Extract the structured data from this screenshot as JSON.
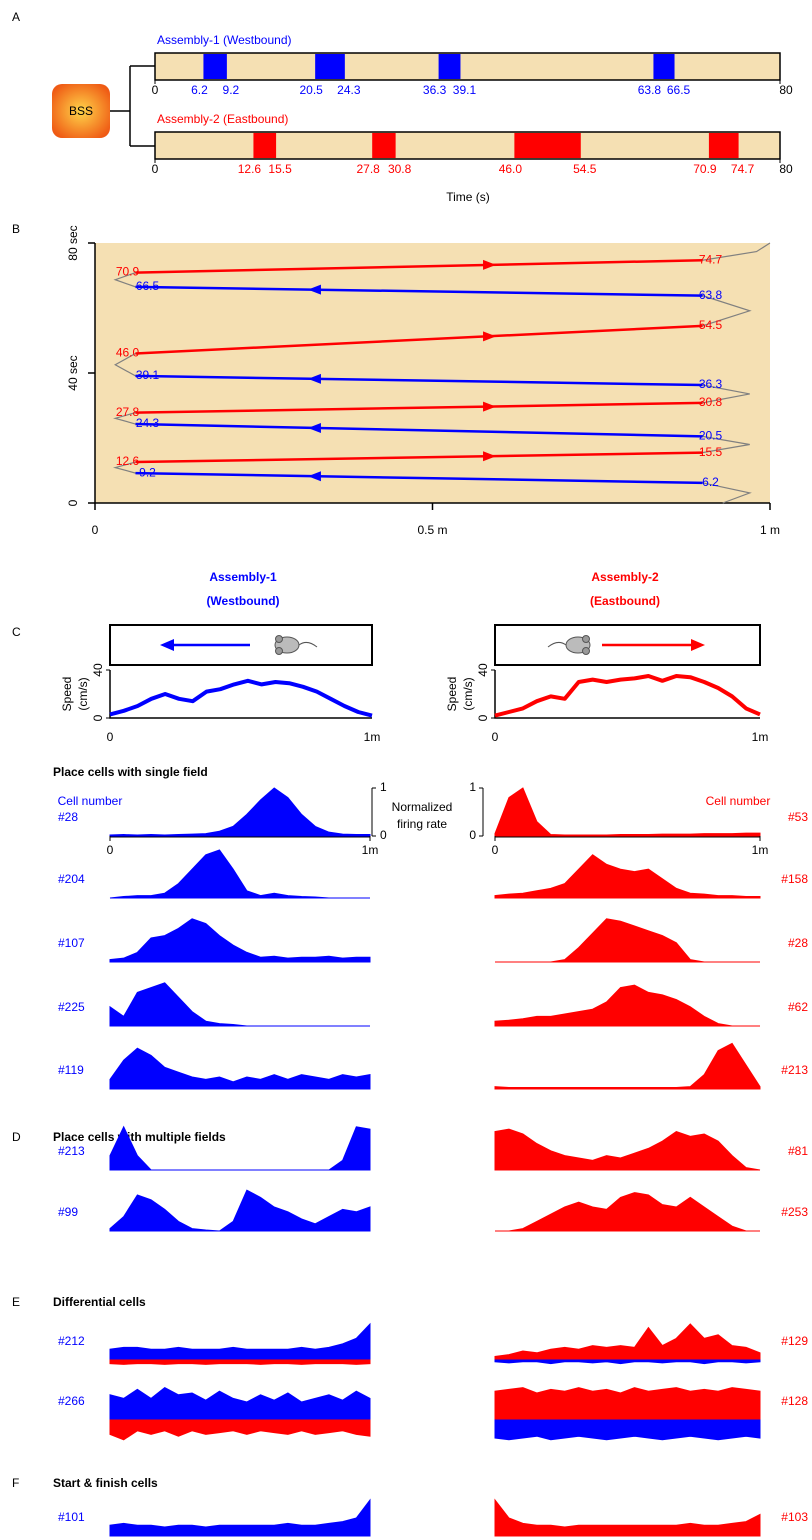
{
  "colors": [
    "#0000ff",
    "#ff0000"
  ],
  "track_color": "#f5e0b3",
  "path_color": "#808080",
  "panel_a": {
    "letter": "A",
    "source": "BSS",
    "xlim": [
      0,
      80
    ],
    "xticks": [
      0,
      80
    ],
    "xlabel": "Time (s)",
    "assemblies": [
      {
        "name": "Assembly-1 (Westbound)",
        "starts": [
          6.2,
          20.5,
          36.3,
          63.8
        ],
        "ends": [
          9.2,
          24.3,
          39.1,
          66.5
        ]
      },
      {
        "name": "Assembly-2 (Eastbound)",
        "starts": [
          12.6,
          27.8,
          {
            "value": 46,
            "label": "46.0"
          },
          70.9
        ],
        "ends": [
          15.5,
          30.8,
          54.5,
          74.7
        ]
      }
    ]
  },
  "panel_b": {
    "letter": "B",
    "ylim": [
      0,
      80
    ],
    "yticks": [
      0,
      {
        "value": 40,
        "label": "40 sec"
      },
      {
        "value": 80,
        "label": "80 sec"
      }
    ],
    "xlim": [
      0,
      1
    ],
    "xticks": [
      0,
      {
        "value": 0.5,
        "label": "0.5 m"
      },
      {
        "value": 1,
        "label": "1 m"
      }
    ],
    "run_x": [
      0.06,
      0.9
    ],
    "labels": [
      [
        "Assembly-1",
        "(Westbound)"
      ],
      [
        "Assembly-2",
        "(Eastbound)"
      ]
    ]
  },
  "panel_c": {
    "letter": "C",
    "speed": {
      "ylabel": [
        "Speed",
        "(cm/s)"
      ],
      "ylim": [
        0,
        40
      ],
      "yticks": [
        0,
        40
      ],
      "xticks": [
        0,
        {
          "value": 1,
          "label": "1m"
        }
      ],
      "series": [
        [
          3,
          6,
          10,
          16,
          20,
          16,
          14,
          22,
          24,
          28,
          31,
          28,
          30,
          29,
          26,
          22,
          16,
          10,
          5,
          2
        ],
        [
          2,
          5,
          8,
          14,
          18,
          16,
          30,
          32,
          30,
          32,
          33,
          35,
          31,
          35,
          34,
          30,
          25,
          18,
          8,
          3
        ]
      ]
    },
    "title": "Place cells with single field",
    "cell_number": "Cell number",
    "norm_label": [
      "Normalized",
      "firing rate"
    ],
    "rate_ticks": [
      0,
      1
    ],
    "pos_ticks": [
      0,
      {
        "value": 1,
        "label": "1m"
      }
    ],
    "cells": [
      [
        {
          "name": "#28",
          "values": [
            0.02,
            0.03,
            0.02,
            0.03,
            0.02,
            0.03,
            0.04,
            0.05,
            0.1,
            0.2,
            0.45,
            0.75,
            1.0,
            0.8,
            0.45,
            0.2,
            0.08,
            0.04,
            0.03,
            0.03
          ]
        },
        {
          "name": "#204",
          "values": [
            0,
            0.03,
            0.05,
            0.05,
            0.1,
            0.3,
            0.6,
            0.9,
            1.0,
            0.6,
            0.15,
            0.05,
            0.1,
            0.05,
            0.03,
            0.02,
            0,
            0,
            0,
            0
          ]
        },
        {
          "name": "#107",
          "values": [
            0.05,
            0.08,
            0.2,
            0.5,
            0.55,
            0.7,
            0.9,
            0.8,
            0.55,
            0.35,
            0.2,
            0.1,
            0.12,
            0.08,
            0.1,
            0.1,
            0.12,
            0.08,
            0.1,
            0.1
          ]
        },
        {
          "name": "#225",
          "values": [
            0.4,
            0.2,
            0.7,
            0.8,
            0.9,
            0.6,
            0.3,
            0.1,
            0.05,
            0.03,
            0,
            0,
            0,
            0,
            0,
            0,
            0,
            0,
            0,
            0
          ]
        },
        {
          "name": "#119",
          "values": [
            0.2,
            0.6,
            0.85,
            0.7,
            0.45,
            0.35,
            0.25,
            0.2,
            0.25,
            0.15,
            0.25,
            0.2,
            0.3,
            0.2,
            0.3,
            0.25,
            0.2,
            0.3,
            0.25,
            0.3
          ]
        }
      ],
      [
        {
          "name": "#53",
          "values": [
            0.05,
            0.8,
            1.0,
            0.3,
            0.03,
            0.02,
            0.02,
            0.02,
            0.02,
            0.03,
            0.03,
            0.03,
            0.04,
            0.04,
            0.04,
            0.05,
            0.05,
            0.05,
            0.06,
            0.06
          ]
        },
        {
          "name": "#158",
          "values": [
            0.05,
            0.08,
            0.1,
            0.15,
            0.2,
            0.3,
            0.6,
            0.9,
            0.7,
            0.6,
            0.55,
            0.6,
            0.4,
            0.2,
            0.1,
            0.08,
            0.05,
            0.05,
            0.03,
            0.03
          ]
        },
        {
          "name": "#28",
          "values": [
            0,
            0,
            0,
            0,
            0,
            0.05,
            0.3,
            0.6,
            0.9,
            0.85,
            0.75,
            0.65,
            0.55,
            0.4,
            0.05,
            0,
            0,
            0,
            0,
            0
          ]
        },
        {
          "name": "#62",
          "values": [
            0.1,
            0.12,
            0.15,
            0.2,
            0.2,
            0.25,
            0.3,
            0.35,
            0.5,
            0.8,
            0.85,
            0.7,
            0.65,
            0.55,
            0.4,
            0.2,
            0.05,
            0,
            0,
            0
          ]
        },
        {
          "name": "#213",
          "values": [
            0.05,
            0.03,
            0.03,
            0.03,
            0.03,
            0.03,
            0.03,
            0.03,
            0.03,
            0.03,
            0.03,
            0.03,
            0.03,
            0.03,
            0.05,
            0.3,
            0.8,
            0.95,
            0.5,
            0.05
          ]
        }
      ]
    ]
  },
  "panel_d": {
    "letter": "D",
    "title": "Place cells with multiple fields",
    "cells": [
      [
        {
          "name": "#213",
          "values": [
            0.3,
            0.9,
            0.3,
            0,
            0,
            0,
            0,
            0,
            0,
            0,
            0,
            0,
            0,
            0,
            0,
            0,
            0,
            0.2,
            0.9,
            0.85
          ]
        },
        {
          "name": "#99",
          "values": [
            0.05,
            0.3,
            0.75,
            0.65,
            0.45,
            0.2,
            0.05,
            0.02,
            0,
            0.2,
            0.85,
            0.7,
            0.5,
            0.4,
            0.25,
            0.15,
            0.3,
            0.45,
            0.4,
            0.5
          ]
        }
      ],
      [
        {
          "name": "#81",
          "values": [
            0.8,
            0.85,
            0.75,
            0.55,
            0.4,
            0.3,
            0.25,
            0.2,
            0.3,
            0.25,
            0.35,
            0.45,
            0.6,
            0.8,
            0.7,
            0.75,
            0.6,
            0.3,
            0.05,
            0
          ]
        },
        {
          "name": "#253",
          "values": [
            0,
            0,
            0.05,
            0.2,
            0.35,
            0.5,
            0.6,
            0.5,
            0.45,
            0.7,
            0.8,
            0.75,
            0.55,
            0.5,
            0.7,
            0.5,
            0.3,
            0.1,
            0,
            0
          ]
        }
      ]
    ]
  },
  "panel_e": {
    "letter": "E",
    "title": "Differential cells",
    "cells": [
      [
        {
          "name": "#212",
          "up": [
            0.3,
            0.35,
            0.35,
            0.3,
            0.3,
            0.35,
            0.3,
            0.3,
            0.3,
            0.35,
            0.3,
            0.3,
            0.3,
            0.3,
            0.35,
            0.3,
            0.35,
            0.45,
            0.6,
            1.0
          ],
          "down": [
            0.1,
            0.12,
            0.1,
            0.1,
            0.12,
            0.1,
            0.1,
            0.12,
            0.1,
            0.1,
            0.1,
            0.12,
            0.1,
            0.1,
            0.12,
            0.1,
            0.1,
            0.1,
            0.12,
            0.1
          ]
        },
        {
          "name": "#266",
          "up": [
            0.7,
            0.6,
            0.85,
            0.6,
            0.9,
            0.7,
            0.75,
            0.55,
            0.8,
            0.6,
            0.5,
            0.7,
            0.55,
            0.75,
            0.5,
            0.6,
            0.7,
            0.55,
            0.8,
            0.6
          ],
          "down": [
            0.4,
            0.55,
            0.3,
            0.4,
            0.3,
            0.45,
            0.3,
            0.4,
            0.35,
            0.3,
            0.4,
            0.3,
            0.35,
            0.4,
            0.3,
            0.4,
            0.35,
            0.3,
            0.4,
            0.45
          ]
        }
      ],
      [
        {
          "name": "#129",
          "up": [
            0.1,
            0.15,
            0.25,
            0.2,
            0.3,
            0.35,
            0.3,
            0.4,
            0.35,
            0.4,
            0.35,
            0.9,
            0.4,
            0.6,
            1.0,
            0.6,
            0.7,
            0.4,
            0.35,
            0.2
          ],
          "down": [
            0.05,
            0.08,
            0.05,
            0.05,
            0.1,
            0.05,
            0.05,
            0.08,
            0.05,
            0.1,
            0.05,
            0.05,
            0.08,
            0.05,
            0.05,
            0.1,
            0.05,
            0.05,
            0.08,
            0.05
          ]
        },
        {
          "name": "#128",
          "up": [
            0.8,
            0.85,
            0.9,
            0.75,
            0.85,
            0.8,
            0.9,
            0.8,
            0.85,
            0.75,
            0.9,
            0.8,
            0.85,
            0.9,
            0.8,
            0.85,
            0.8,
            0.9,
            0.85,
            0.8
          ],
          "down": [
            0.5,
            0.55,
            0.5,
            0.45,
            0.55,
            0.5,
            0.45,
            0.5,
            0.55,
            0.5,
            0.45,
            0.5,
            0.55,
            0.5,
            0.45,
            0.5,
            0.55,
            0.5,
            0.45,
            0.5
          ]
        }
      ]
    ]
  },
  "panel_f": {
    "letter": "F",
    "title": "Start & finish cells",
    "cells": [
      [
        {
          "name": "#101",
          "values": [
            0.3,
            0.35,
            0.3,
            0.3,
            0.25,
            0.3,
            0.3,
            0.25,
            0.3,
            0.3,
            0.3,
            0.3,
            0.3,
            0.35,
            0.3,
            0.3,
            0.35,
            0.4,
            0.5,
            1.0
          ]
        }
      ],
      [
        {
          "name": "#103",
          "values": [
            1.0,
            0.5,
            0.35,
            0.3,
            0.3,
            0.25,
            0.3,
            0.3,
            0.3,
            0.3,
            0.3,
            0.3,
            0.3,
            0.3,
            0.35,
            0.3,
            0.3,
            0.35,
            0.4,
            0.6
          ]
        }
      ]
    ]
  }
}
